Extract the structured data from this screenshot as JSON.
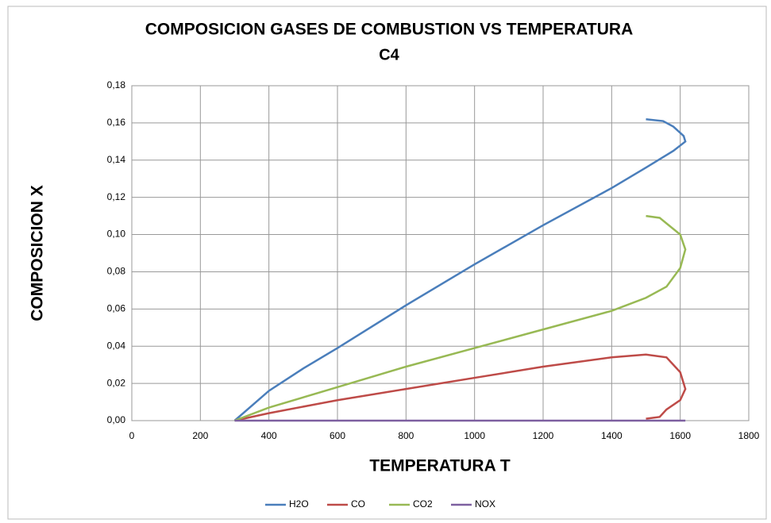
{
  "chart_data": {
    "type": "line",
    "title": "COMPOSICION GASES DE COMBUSTION VS TEMPERATURA",
    "subtitle": "C4",
    "x_label": "TEMPERATURA T",
    "y_label": "COMPOSICION X",
    "xlim": [
      0,
      1800
    ],
    "xticks": [
      0,
      200,
      400,
      600,
      800,
      1000,
      1200,
      1400,
      1600,
      1800
    ],
    "ylim": [
      0,
      0.18
    ],
    "yticks": [
      {
        "value": 0,
        "label": "0,00"
      },
      {
        "value": 0.02,
        "label": "0,02"
      },
      {
        "value": 0.04,
        "label": "0,04"
      },
      {
        "value": 0.06,
        "label": "0,06"
      },
      {
        "value": 0.08,
        "label": "0,08"
      },
      {
        "value": 0.1,
        "label": "0,10"
      },
      {
        "value": 0.12,
        "label": "0,12"
      },
      {
        "value": 0.14,
        "label": "0,14"
      },
      {
        "value": 0.16,
        "label": "0,16"
      },
      {
        "value": 0.18,
        "label": "0,18"
      }
    ],
    "grid": true,
    "legend": "bottom",
    "series": [
      {
        "name": "H2O",
        "color": "#4a7ebb",
        "x": [
          300,
          400,
          500,
          600,
          800,
          1000,
          1200,
          1400,
          1500,
          1580,
          1615,
          1610,
          1580,
          1550,
          1500
        ],
        "values": [
          0,
          0.016,
          0.028,
          0.039,
          0.062,
          0.084,
          0.105,
          0.125,
          0.136,
          0.145,
          0.15,
          0.153,
          0.158,
          0.161,
          0.162
        ]
      },
      {
        "name": "CO",
        "color": "#be4b48",
        "x": [
          300,
          400,
          600,
          800,
          1000,
          1200,
          1400,
          1500,
          1560,
          1600,
          1615,
          1600,
          1560,
          1540,
          1500
        ],
        "values": [
          0,
          0.004,
          0.011,
          0.017,
          0.023,
          0.029,
          0.034,
          0.0355,
          0.034,
          0.026,
          0.017,
          0.011,
          0.006,
          0.002,
          0.001
        ]
      },
      {
        "name": "CO2",
        "color": "#98b954",
        "x": [
          300,
          400,
          600,
          800,
          1000,
          1200,
          1400,
          1500,
          1560,
          1600,
          1615,
          1600,
          1560,
          1540,
          1500
        ],
        "values": [
          0,
          0.007,
          0.018,
          0.029,
          0.039,
          0.049,
          0.059,
          0.066,
          0.072,
          0.082,
          0.092,
          0.1,
          0.106,
          0.109,
          0.11
        ]
      },
      {
        "name": "NOX",
        "color": "#7d60a0",
        "x": [
          300,
          1615
        ],
        "values": [
          0,
          0
        ]
      }
    ]
  }
}
